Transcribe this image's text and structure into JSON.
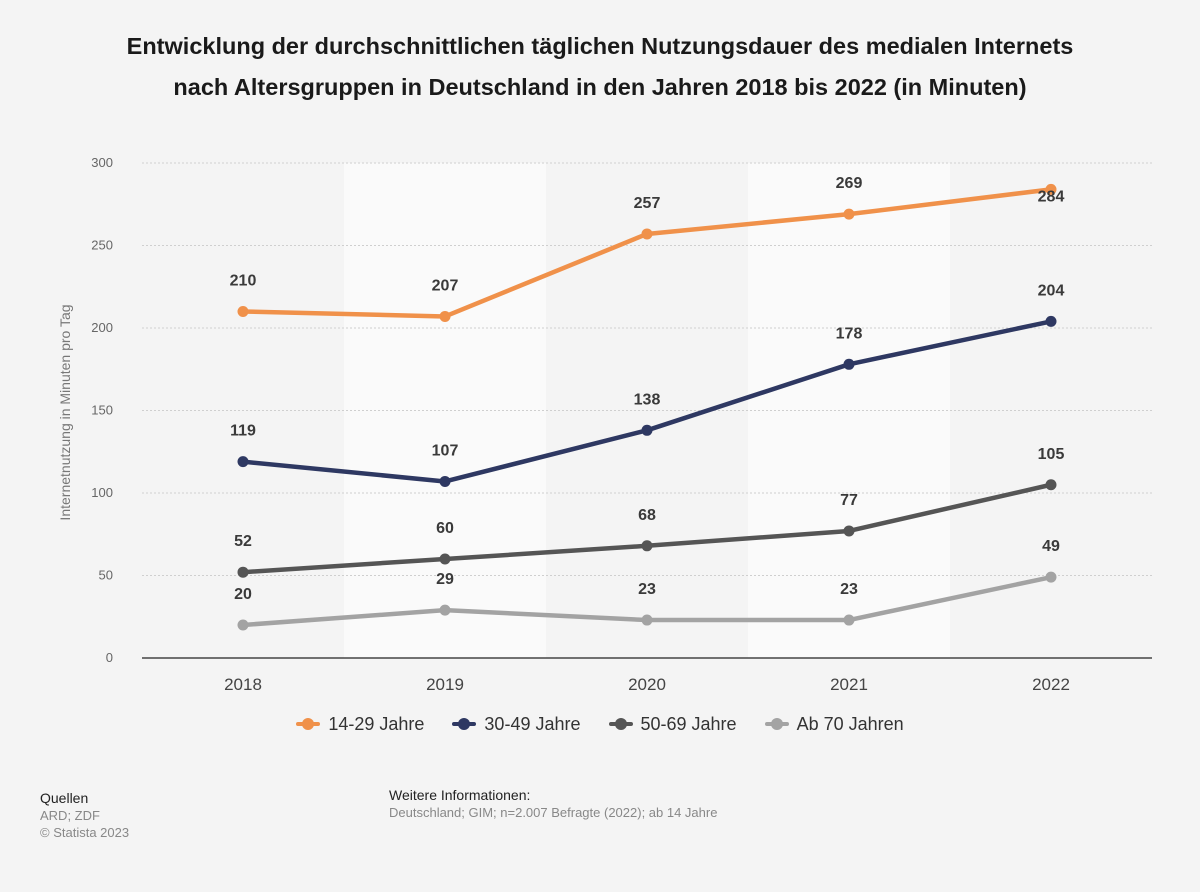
{
  "title": "Entwicklung der durchschnittlichen täglichen Nutzungsdauer des medialen Internets nach Altersgruppen in Deutschland in den Jahren 2018 bis 2022 (in Minuten)",
  "chart_data": {
    "type": "line",
    "title": "Entwicklung der durchschnittlichen täglichen Nutzungsdauer des medialen Internets nach Altersgruppen in Deutschland in den Jahren 2018 bis 2022 (in Minuten)",
    "xlabel": "",
    "ylabel": "Internetnutzung in Minuten pro Tag",
    "categories": [
      "2018",
      "2019",
      "2020",
      "2021",
      "2022"
    ],
    "ylim": [
      0,
      300
    ],
    "yticks": [
      0,
      50,
      100,
      150,
      200,
      250,
      300
    ],
    "grid": true,
    "legend_position": "bottom",
    "series": [
      {
        "name": "14-29 Jahre",
        "color": "#f0914a",
        "values": [
          210,
          207,
          257,
          269,
          284
        ]
      },
      {
        "name": "30-49 Jahre",
        "color": "#2e3862",
        "values": [
          119,
          107,
          138,
          178,
          204
        ]
      },
      {
        "name": "50-69 Jahre",
        "color": "#555555",
        "values": [
          52,
          60,
          68,
          77,
          105
        ]
      },
      {
        "name": "Ab 70 Jahren",
        "color": "#a3a3a3",
        "values": [
          20,
          29,
          23,
          23,
          49
        ]
      }
    ]
  },
  "sources": {
    "heading": "Quellen",
    "lines": [
      "ARD; ZDF",
      "© Statista 2023"
    ]
  },
  "info": {
    "heading": "Weitere Informationen:",
    "text": "Deutschland; GIM; n=2.007 Befragte (2022); ab 14 Jahre"
  }
}
